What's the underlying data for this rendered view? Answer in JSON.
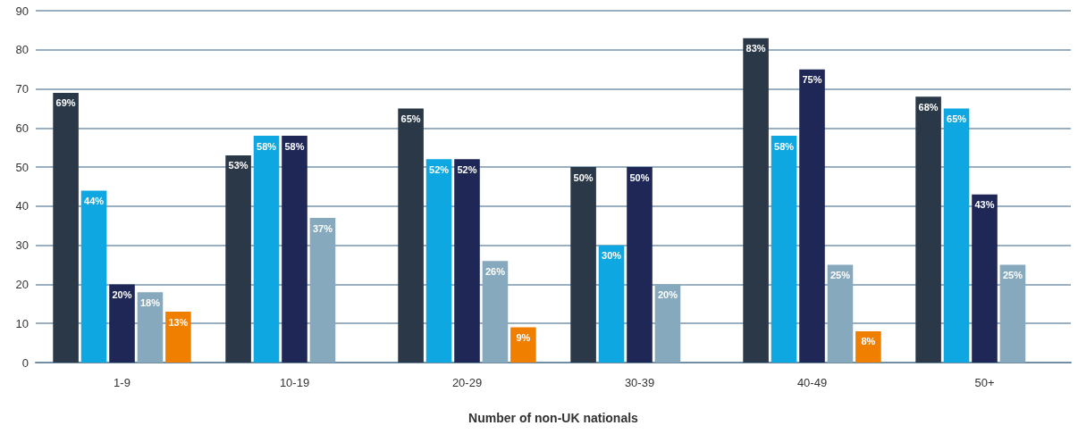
{
  "chart_data": {
    "type": "bar",
    "xlabel": "Number of non-UK nationals",
    "categories": [
      "1-9",
      "10-19",
      "20-29",
      "30-39",
      "40-49",
      "50+"
    ],
    "series": [
      {
        "color": "#2b3847",
        "values": [
          69,
          53,
          65,
          50,
          83,
          68
        ],
        "value_labels": [
          "69%",
          "53%",
          "65%",
          "50%",
          "83%",
          "68%"
        ]
      },
      {
        "color": "#0ea7e1",
        "values": [
          44,
          58,
          52,
          30,
          58,
          65
        ],
        "value_labels": [
          "44%",
          "58%",
          "52%",
          "30%",
          "58%",
          "65%"
        ]
      },
      {
        "color": "#1e2756",
        "values": [
          20,
          58,
          52,
          50,
          75,
          43
        ],
        "value_labels": [
          "20%",
          "58%",
          "52%",
          "50%",
          "75%",
          "43%"
        ]
      },
      {
        "color": "#86a9bd",
        "values": [
          18,
          37,
          26,
          20,
          25,
          25
        ],
        "value_labels": [
          "18%",
          "37%",
          "26%",
          "20%",
          "25%",
          "25%"
        ]
      },
      {
        "color": "#f07f00",
        "values": [
          13,
          null,
          9,
          null,
          8,
          null
        ],
        "value_labels": [
          "13%",
          null,
          "9%",
          null,
          "8%",
          null
        ]
      }
    ],
    "ylim": [
      0,
      90
    ],
    "yticks": [
      0,
      10,
      20,
      30,
      40,
      50,
      60,
      70,
      80,
      90
    ],
    "grid": "y"
  }
}
